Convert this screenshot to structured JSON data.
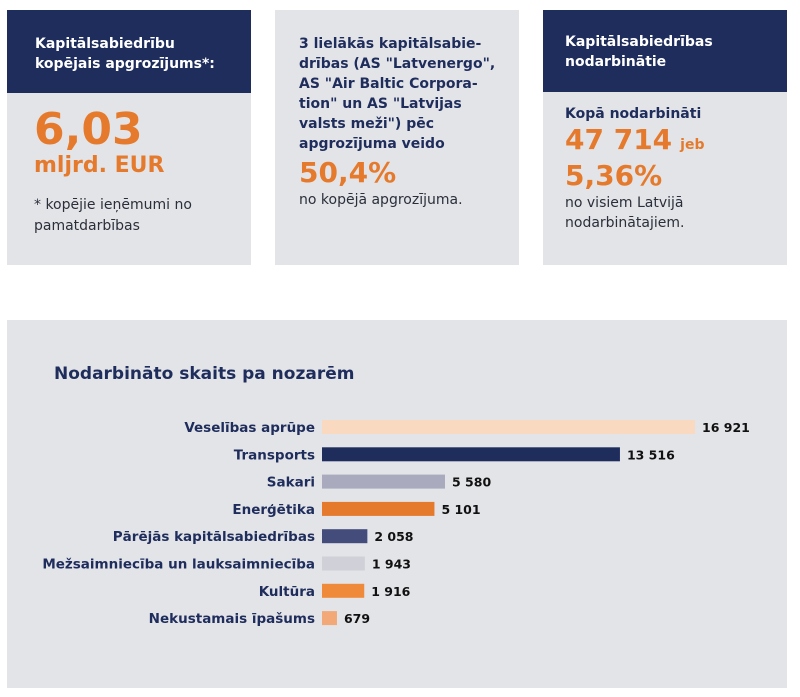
{
  "cards": {
    "turnover": {
      "title": "Kapitālsabiedrību kopējais apgrozījums*:",
      "value": "6,03",
      "unit": "mljrd. EUR",
      "note": "* kopējie ieņēmumi no pamatdarbības"
    },
    "top3": {
      "text": "3 lielākās kapitālsabie-drības (AS \"Latvenergo\", AS \"Air Baltic Corpora-tion\" un  AS \"Latvijas valsts meži\") pēc apgrozījuma veido",
      "value": "50,4%",
      "foot": "no kopējā apgrozījuma."
    },
    "employed": {
      "title": "Kapitālsabiedrības nodarbinātie",
      "lead": "Kopā nodarbināti",
      "number": "47 714",
      "jeb": "jeb",
      "percent": "5,36%",
      "foot": "no visiem Latvijā nodarbinātajiem."
    }
  },
  "colors": {
    "navy": "#1f2d5c",
    "orange": "#e57a2d",
    "panel": "#e3e4e8"
  },
  "chart_data": {
    "type": "bar",
    "orientation": "horizontal",
    "title": "Nodarbināto skaits pa nozarēm",
    "xlim": [
      0,
      16921
    ],
    "grid": false,
    "categories": [
      "Veselības aprūpe",
      "Transports",
      "Sakari",
      "Enerģētika",
      "Pārējās kapitālsabiedrības",
      "Mežsaimniecība un lauksaimniecība",
      "Kultūra",
      "Nekustamais īpašums"
    ],
    "values": [
      16921,
      13516,
      5580,
      5101,
      2058,
      1943,
      1916,
      679
    ],
    "value_labels": [
      "16 921",
      "13 516",
      "5 580",
      "5 101",
      "2 058",
      "1 943",
      "1 916",
      "679"
    ],
    "bar_colors": [
      "#f9d9bf",
      "#1f2d5c",
      "#a9aabd",
      "#e57a2d",
      "#434c7a",
      "#cfd0d8",
      "#f08a3b",
      "#f2a877"
    ]
  }
}
